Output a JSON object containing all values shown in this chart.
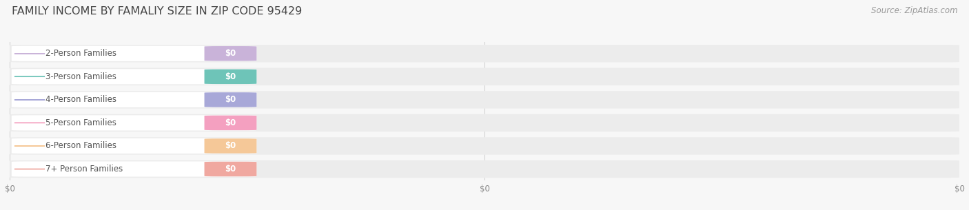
{
  "title": "FAMILY INCOME BY FAMALIY SIZE IN ZIP CODE 95429",
  "source_text": "Source: ZipAtlas.com",
  "categories": [
    "2-Person Families",
    "3-Person Families",
    "4-Person Families",
    "5-Person Families",
    "6-Person Families",
    "7+ Person Families"
  ],
  "values": [
    0,
    0,
    0,
    0,
    0,
    0
  ],
  "bar_colors": [
    "#c9b3d9",
    "#6ec4b8",
    "#a8a8d8",
    "#f4a0c0",
    "#f5c898",
    "#f0a8a0"
  ],
  "bg_color": "#f7f7f7",
  "bar_bg_color": "#ececec",
  "title_color": "#444444",
  "source_color": "#999999",
  "label_text_color": "#555555",
  "value_text_color": "#ffffff",
  "title_fontsize": 11.5,
  "bar_label_fontsize": 8.5,
  "source_fontsize": 8.5,
  "tick_fontsize": 8.5,
  "xtick_labels": [
    "$0",
    "$0",
    "$0"
  ],
  "xtick_positions": [
    0.0,
    0.5,
    1.0
  ]
}
